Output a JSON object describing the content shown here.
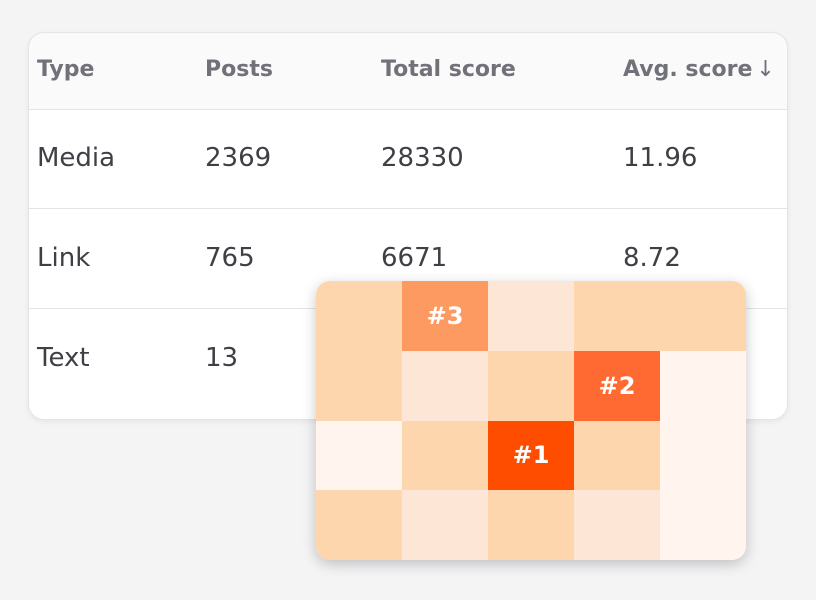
{
  "table": {
    "columns": {
      "type": "Type",
      "posts": "Posts",
      "total_score": "Total score",
      "avg_score": "Avg. score",
      "sort_icon": "arrow-down-icon",
      "sort_glyph": "↓"
    },
    "rows": [
      {
        "type": "Media",
        "posts": "2369",
        "total_score": "28330",
        "avg_score": "11.96"
      },
      {
        "type": "Link",
        "posts": "765",
        "total_score": "6671",
        "avg_score": "8.72"
      },
      {
        "type": "Text",
        "posts": "13",
        "total_score": "",
        "avg_score": ""
      }
    ]
  },
  "heatmap": {
    "colors": {
      "orange_1": "#ff4d00",
      "orange_2": "#ff6a33",
      "orange_3": "#fc9a61",
      "peach": "#fdd6ae",
      "light": "#fee6d6",
      "pale": "#fff4ee"
    },
    "grid": [
      [
        {
          "shade": "peach",
          "label": ""
        },
        {
          "shade": "orange_3",
          "label": "#3"
        },
        {
          "shade": "light",
          "label": ""
        },
        {
          "shade": "peach",
          "label": ""
        },
        {
          "shade": "peach",
          "label": ""
        }
      ],
      [
        {
          "shade": "peach",
          "label": ""
        },
        {
          "shade": "light",
          "label": ""
        },
        {
          "shade": "peach",
          "label": ""
        },
        {
          "shade": "orange_2",
          "label": "#2"
        },
        {
          "shade": "pale",
          "label": ""
        }
      ],
      [
        {
          "shade": "pale",
          "label": ""
        },
        {
          "shade": "peach",
          "label": ""
        },
        {
          "shade": "orange_1",
          "label": "#1"
        },
        {
          "shade": "peach",
          "label": ""
        },
        {
          "shade": "pale",
          "label": ""
        }
      ],
      [
        {
          "shade": "peach",
          "label": ""
        },
        {
          "shade": "light",
          "label": ""
        },
        {
          "shade": "peach",
          "label": ""
        },
        {
          "shade": "light",
          "label": ""
        },
        {
          "shade": "pale",
          "label": ""
        }
      ]
    ]
  }
}
